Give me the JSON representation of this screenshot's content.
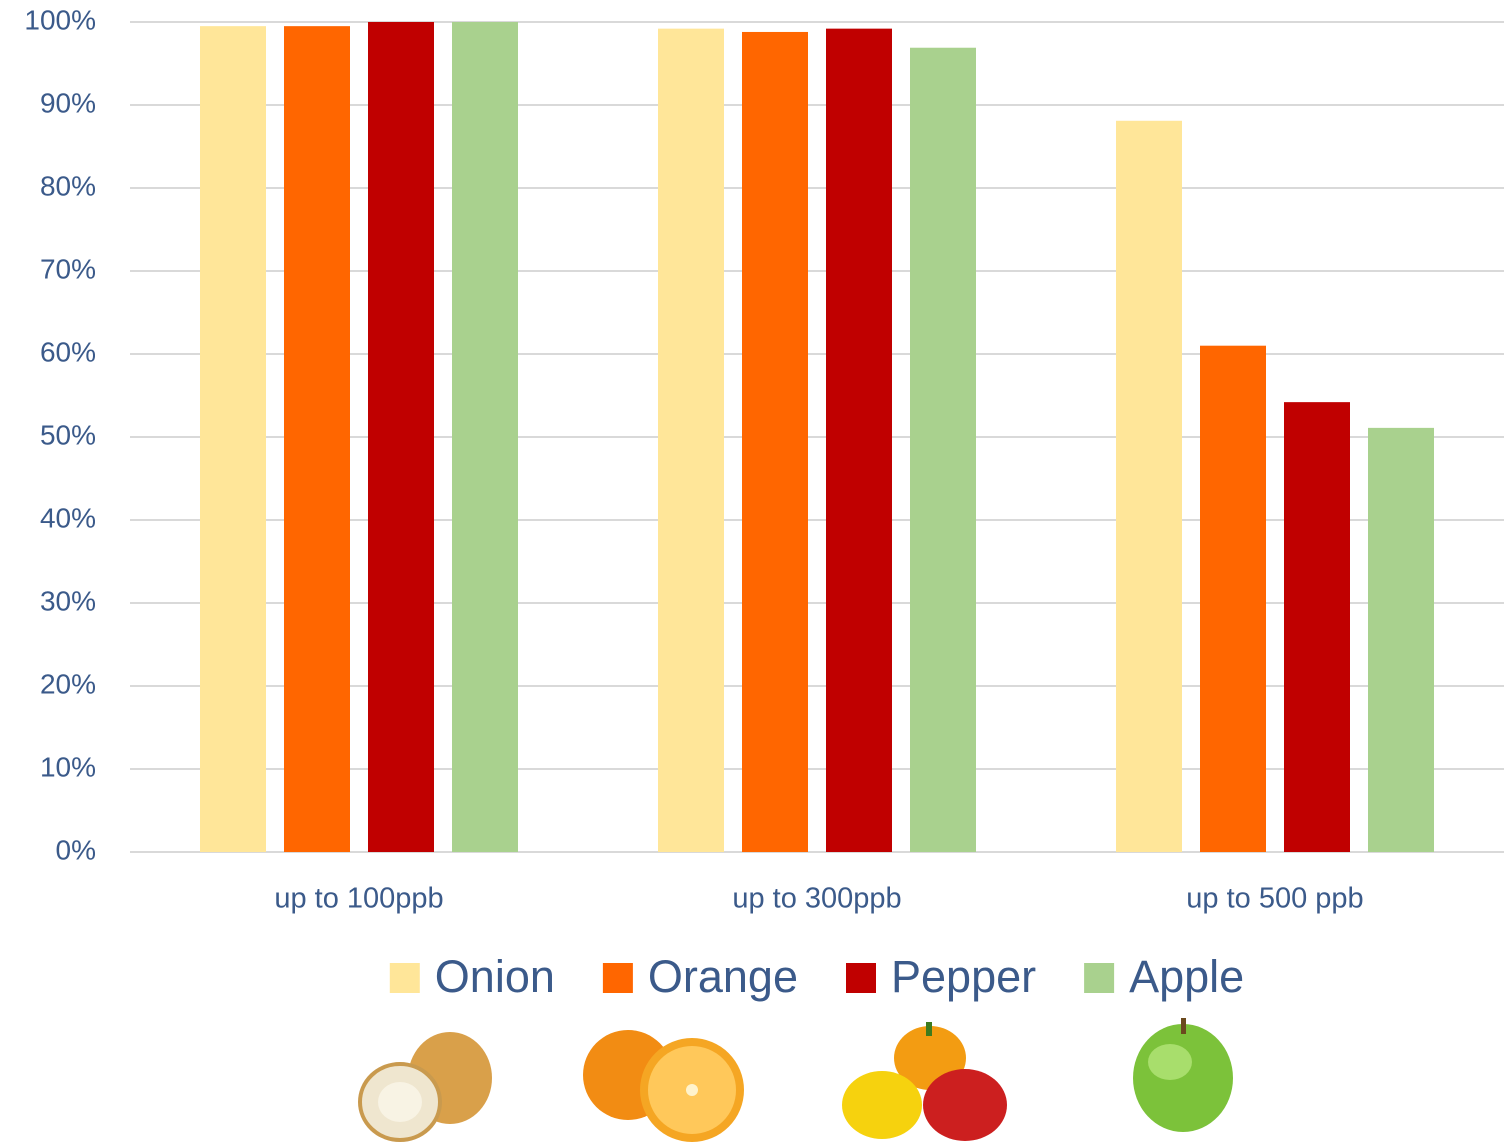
{
  "chart_data": {
    "type": "bar",
    "categories": [
      "up to 100ppb",
      "up to 300ppb",
      "up to 500 ppb"
    ],
    "series": [
      {
        "name": "Onion",
        "color": "#ffe699",
        "values": [
          99.5,
          99.2,
          88.1
        ]
      },
      {
        "name": "Orange",
        "color": "#ff6600",
        "values": [
          99.5,
          98.8,
          61.0
        ]
      },
      {
        "name": "Pepper",
        "color": "#c00000",
        "values": [
          100,
          99.2,
          54.2
        ]
      },
      {
        "name": "Apple",
        "color": "#a9d18e",
        "values": [
          100,
          96.9,
          51.1
        ]
      }
    ],
    "ylim": [
      0,
      100
    ],
    "yticks": [
      {
        "value": 0,
        "label": "0%"
      },
      {
        "value": 10,
        "label": "10%"
      },
      {
        "value": 20,
        "label": "20%"
      },
      {
        "value": 30,
        "label": "30%"
      },
      {
        "value": 40,
        "label": "40%"
      },
      {
        "value": 50,
        "label": "50%"
      },
      {
        "value": 60,
        "label": "60%"
      },
      {
        "value": 70,
        "label": "70%"
      },
      {
        "value": 80,
        "label": "80%"
      },
      {
        "value": 90,
        "label": "90%"
      },
      {
        "value": 100,
        "label": "100%"
      }
    ],
    "grid": true,
    "legend": "bottom"
  }
}
